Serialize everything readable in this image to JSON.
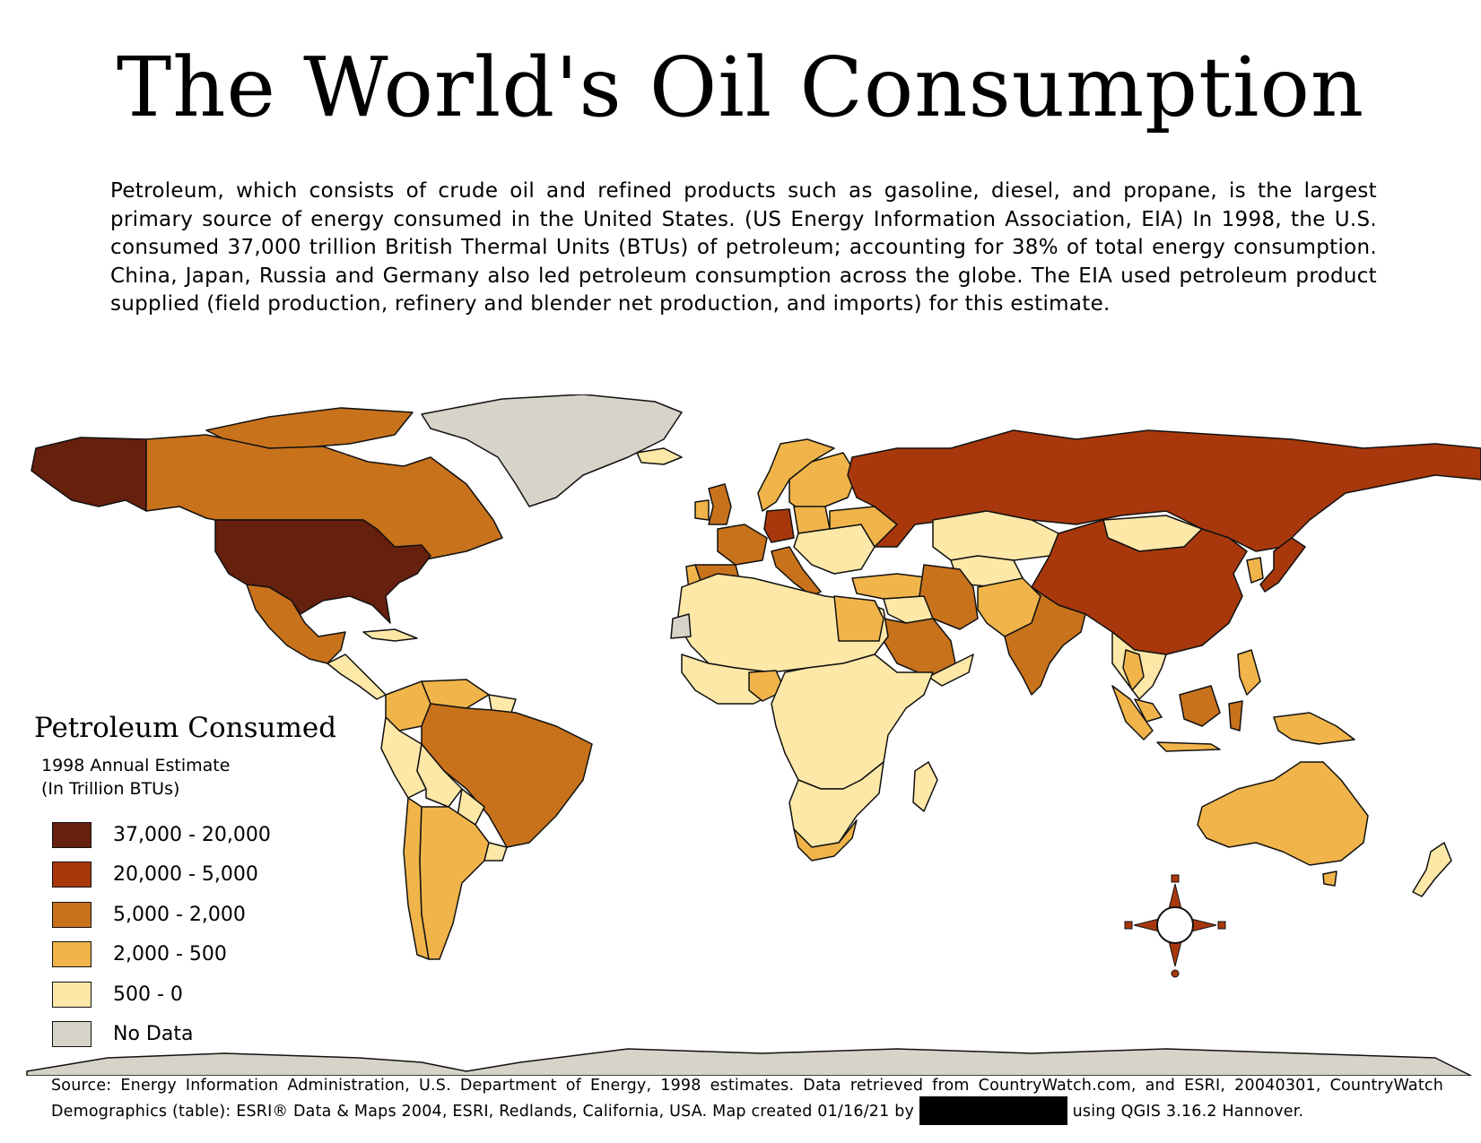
{
  "title": "The World's Oil Consumption",
  "intro": "Petroleum, which consists of crude oil and refined products such as gasoline, diesel, and propane, is the largest primary source of energy consumed in the United States. (US Energy Information Association, EIA) In 1998, the U.S. consumed 37,000 trillion British Thermal Units (BTUs) of petroleum; accounting for 38% of total energy consumption. China, Japan, Russia and Germany also led petroleum consumption across the globe.  The EIA used petroleum product supplied (field production, refinery and blender net production, and imports) for this estimate.",
  "legend": {
    "title": "Petroleum Consumed",
    "subtitle_line1": "1998 Annual Estimate",
    "subtitle_line2": "(In Trillion BTUs)",
    "classes": [
      {
        "label": "37,000 - 20,000",
        "color": "#66200e"
      },
      {
        "label": "20,000 - 5,000",
        "color": "#a8380c"
      },
      {
        "label": "5,000 - 2,000",
        "color": "#c8721c"
      },
      {
        "label": "2,000 - 500",
        "color": "#f0b44a"
      },
      {
        "label": "500 - 0",
        "color": "#fde8a8"
      },
      {
        "label": "No Data",
        "color": "#d8d3c8"
      }
    ]
  },
  "colors": {
    "class1": "#66200e",
    "class2": "#a8380c",
    "class3": "#c8721c",
    "class4": "#f0b44a",
    "class5": "#fde8a8",
    "nodata": "#d8d3c8",
    "compass": "#a8380c"
  },
  "source": {
    "text_before": "Source: Energy Information Administration, U.S. Department of Energy, 1998 estimates. Data retrieved from CountryWatch.com, and ESRI, 20040301, CountryWatch Demographics (table): ESRI® Data & Maps 2004, ESRI, Redlands, California, USA. Map created 01/16/21 by",
    "text_after": "using QGIS 3.16.2 Hannover."
  }
}
